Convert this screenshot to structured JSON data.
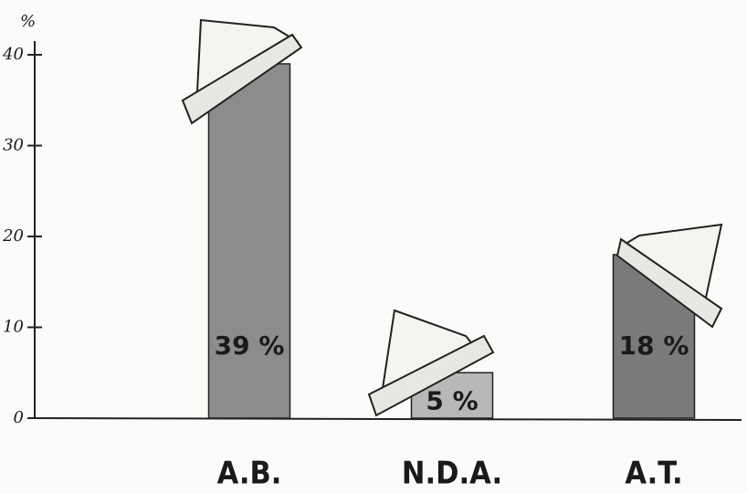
{
  "chart_data": {
    "type": "bar",
    "y_label": "%",
    "categories": [
      "A.B.",
      "N.D.A.",
      "A.T."
    ],
    "values": [
      39,
      5,
      18
    ],
    "value_labels": [
      "39 %",
      "5 %",
      "18 %"
    ],
    "colors": [
      "#8c8c8c",
      "#b8b8b8",
      "#7a7a7a"
    ],
    "ylim": [
      0,
      40
    ],
    "yticks": [
      0,
      10,
      20,
      30,
      40
    ]
  }
}
